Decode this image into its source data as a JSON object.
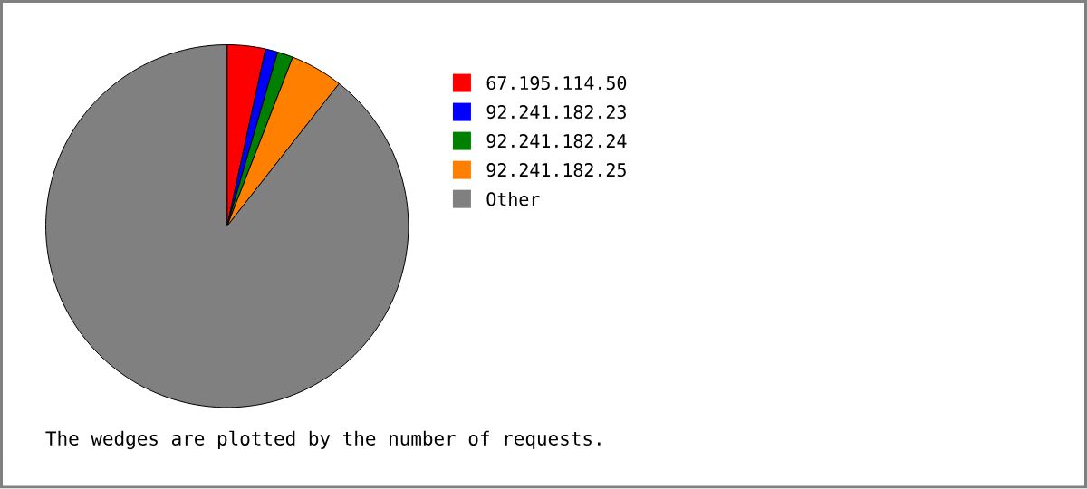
{
  "chart_data": {
    "type": "pie",
    "categories": [
      "67.195.114.50",
      "92.241.182.23",
      "92.241.182.24",
      "92.241.182.25",
      "Other"
    ],
    "values": [
      3.4,
      1.1,
      1.4,
      4.7,
      89.4
    ],
    "colors": [
      "#ff0000",
      "#0000ff",
      "#008000",
      "#ff8000",
      "#808080"
    ],
    "legend": "right",
    "annotations": [
      "The wedges are plotted by the number of requests."
    ]
  }
}
